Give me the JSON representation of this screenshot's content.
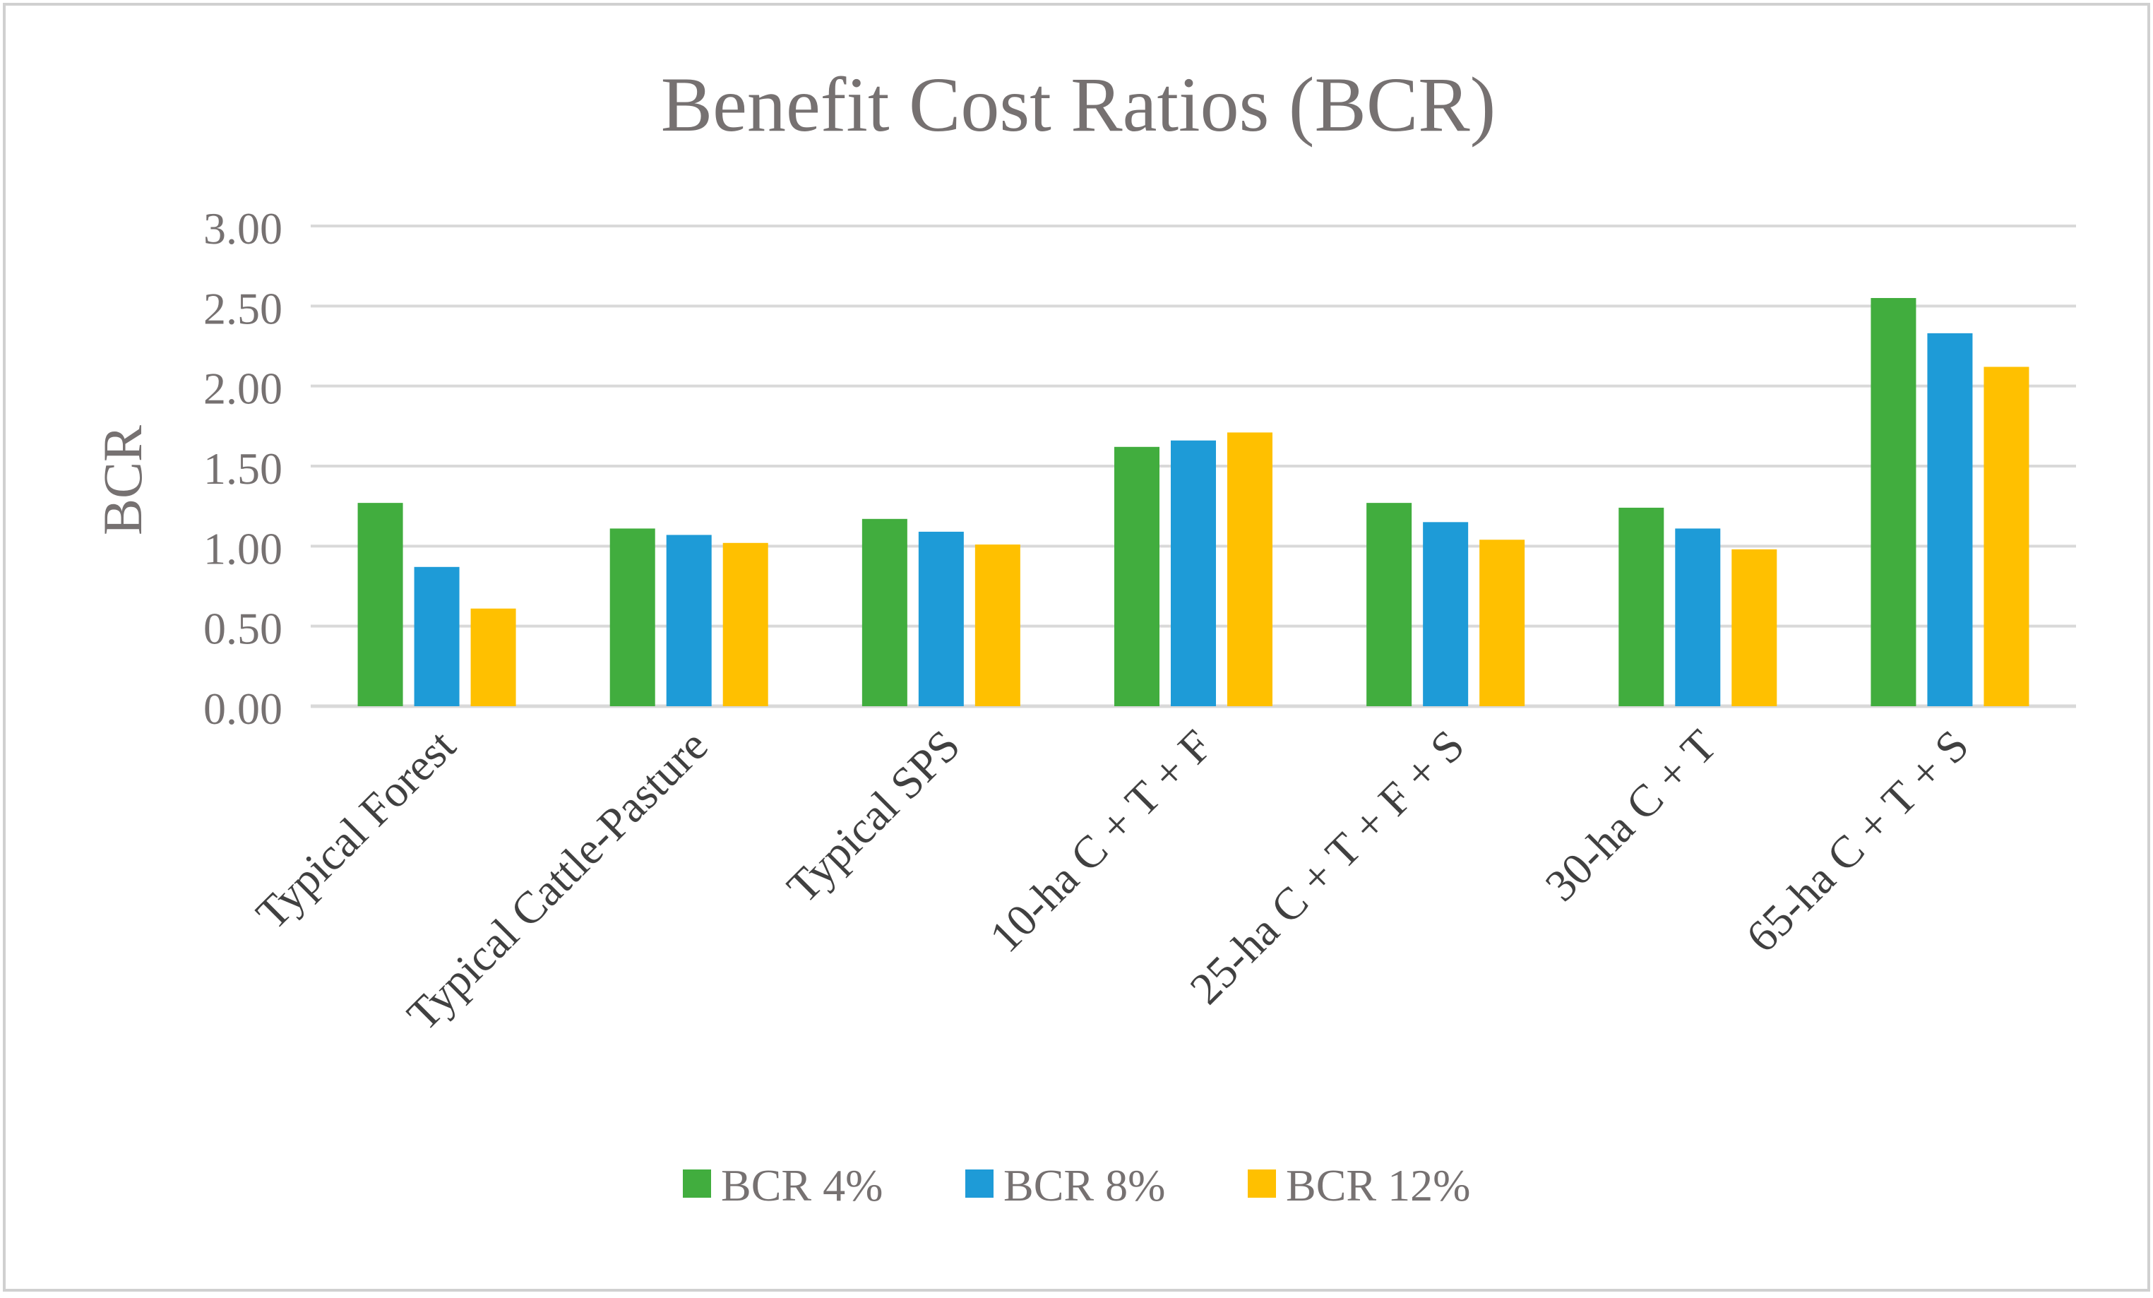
{
  "chart_data": {
    "type": "bar",
    "title": "Benefit Cost Ratios (BCR)",
    "xlabel": "",
    "ylabel": "BCR",
    "ylim": [
      0,
      3
    ],
    "yticks": [
      0,
      0.5,
      1,
      1.5,
      2,
      2.5,
      3
    ],
    "ytick_labels": [
      "0.00",
      "0.50",
      "1.00",
      "1.50",
      "2.00",
      "2.50",
      "3.00"
    ],
    "grid": true,
    "legend_position": "bottom",
    "categories": [
      "Typical Forest",
      "Typical Cattle-Pasture",
      "Typical SPS",
      "10-ha C + T + F",
      "25-ha C + T + F + S",
      "30-ha C + T",
      "65-ha C + T + S"
    ],
    "series": [
      {
        "name": "BCR 4%",
        "color": "#41AD3E",
        "values": [
          1.27,
          1.11,
          1.17,
          1.62,
          1.27,
          1.24,
          2.55
        ]
      },
      {
        "name": "BCR 8%",
        "color": "#1E9BD7",
        "values": [
          0.87,
          1.07,
          1.09,
          1.66,
          1.15,
          1.11,
          2.33
        ]
      },
      {
        "name": "BCR 12%",
        "color": "#FFC000",
        "values": [
          0.61,
          1.02,
          1.01,
          1.71,
          1.04,
          0.98,
          2.12
        ]
      }
    ],
    "colors": {
      "text": "#767171",
      "category_text": "#404040",
      "grid": "#D9D9D9",
      "border": "#D0D0D0"
    }
  }
}
